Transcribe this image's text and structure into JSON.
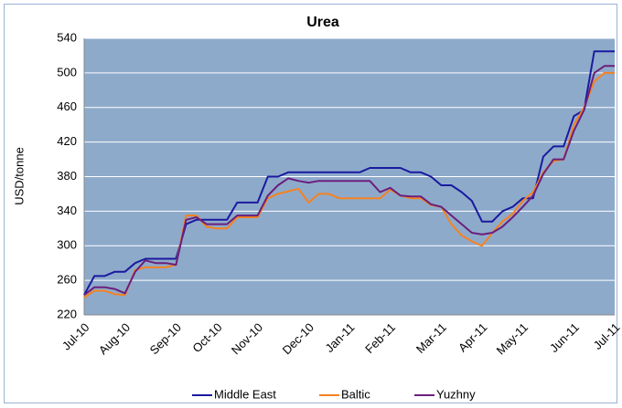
{
  "chart_data": {
    "type": "line",
    "title": "Urea",
    "y_label": "USD/tonne",
    "categories": [
      "Jul-10",
      null,
      null,
      null,
      "Aug-10",
      null,
      null,
      null,
      null,
      "Sep-10",
      null,
      null,
      null,
      "Oct-10",
      null,
      null,
      null,
      "Nov-10",
      null,
      null,
      null,
      null,
      "Dec-10",
      null,
      null,
      null,
      "Jan-11",
      null,
      null,
      null,
      "Feb-11",
      null,
      null,
      null,
      null,
      "Mar-11",
      null,
      null,
      null,
      "Apr-11",
      null,
      null,
      null,
      "May-11",
      null,
      null,
      null,
      null,
      "Jun-11",
      null,
      null,
      null,
      "Jul-11"
    ],
    "series": [
      {
        "name": "Middle East",
        "color": "#1a1aa0",
        "values": [
          243,
          265,
          265,
          270,
          270,
          280,
          285,
          285,
          285,
          285,
          325,
          330,
          330,
          330,
          330,
          350,
          350,
          350,
          380,
          380,
          385,
          385,
          385,
          385,
          385,
          385,
          385,
          385,
          390,
          390,
          390,
          390,
          385,
          385,
          380,
          370,
          370,
          362,
          352,
          328,
          328,
          340,
          345,
          355,
          355,
          403,
          415,
          415,
          450,
          457,
          525,
          525,
          525
        ]
      },
      {
        "name": "Baltic",
        "color": "#f58220",
        "values": [
          240,
          248,
          248,
          244,
          243,
          272,
          275,
          275,
          275,
          278,
          335,
          335,
          322,
          320,
          320,
          333,
          333,
          333,
          355,
          360,
          363,
          366,
          350,
          360,
          360,
          355,
          355,
          355,
          355,
          355,
          365,
          358,
          355,
          355,
          347,
          345,
          325,
          312,
          305,
          300,
          315,
          328,
          337,
          352,
          362,
          385,
          398,
          400,
          440,
          460,
          490,
          500,
          500
        ]
      },
      {
        "name": "Yuzhny",
        "color": "#6b1f7c",
        "values": [
          243,
          252,
          252,
          250,
          245,
          270,
          283,
          280,
          280,
          278,
          330,
          333,
          325,
          325,
          325,
          335,
          335,
          335,
          358,
          370,
          378,
          375,
          373,
          375,
          375,
          375,
          375,
          375,
          375,
          362,
          367,
          358,
          357,
          357,
          348,
          345,
          335,
          325,
          315,
          313,
          315,
          322,
          333,
          345,
          358,
          383,
          400,
          400,
          433,
          457,
          500,
          508,
          508
        ]
      }
    ],
    "ylim": [
      220,
      540
    ],
    "yticks": [
      220,
      260,
      300,
      340,
      380,
      420,
      460,
      500,
      540
    ],
    "grid": true,
    "legend": "bottom"
  }
}
